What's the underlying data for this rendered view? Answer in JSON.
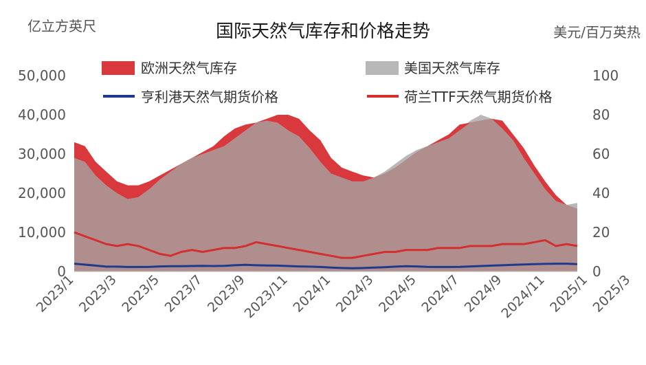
{
  "chart_data": {
    "type": "area",
    "title": "国际天然气库存和价格走势",
    "left_unit": "亿立方英尺",
    "right_unit": "美元/百万英热",
    "left_axis": {
      "min": 0,
      "max": 50000,
      "ticks": [
        "50,000",
        "40,000",
        "30,000",
        "20,000",
        "10,000",
        "0"
      ]
    },
    "right_axis": {
      "min": 0,
      "max": 100,
      "ticks": [
        "100",
        "80",
        "60",
        "40",
        "20",
        "0"
      ]
    },
    "x_tick_labels": [
      "2023/1",
      "2023/3",
      "2023/5",
      "2023/7",
      "2023/9",
      "2023/11",
      "2024/1",
      "2024/3",
      "2024/5",
      "2024/7",
      "2024/9",
      "2024/11",
      "2025/1",
      "2025/3"
    ],
    "x_start": "2023/1",
    "x_step": "0.5 month",
    "colors": {
      "eu": "#d9393c",
      "us": "#b8b8b8",
      "overlap": "#b08e8e",
      "henry": "#1f3a8a",
      "ttf": "#d32f2f",
      "axis": "#bfbfbf"
    },
    "series": [
      {
        "name": "欧洲天然气库存",
        "axis": "left",
        "kind": "area",
        "values": [
          33000,
          32000,
          28000,
          25500,
          23000,
          22000,
          22000,
          23000,
          24500,
          26000,
          27500,
          29000,
          30500,
          32000,
          34500,
          36500,
          37500,
          38000,
          39000,
          40000,
          40000,
          39000,
          36000,
          33500,
          29000,
          26500,
          25500,
          24500,
          24000,
          25000,
          26500,
          28500,
          30500,
          32000,
          33500,
          35000,
          37500,
          38000,
          38500,
          39000,
          38500,
          35000,
          31500,
          27000,
          23000,
          19500,
          17000,
          16000
        ]
      },
      {
        "name": "美国天然气库存",
        "axis": "left",
        "kind": "area",
        "values": [
          29000,
          28000,
          24500,
          22000,
          20000,
          18500,
          19000,
          21000,
          23500,
          25500,
          27500,
          29000,
          30000,
          31000,
          32000,
          34000,
          36000,
          38000,
          38500,
          38000,
          36000,
          34500,
          31500,
          28000,
          25000,
          24000,
          23000,
          23000,
          24000,
          25500,
          27500,
          29500,
          31000,
          32000,
          33000,
          34000,
          36000,
          38500,
          40000,
          39000,
          36500,
          33500,
          29000,
          25000,
          21000,
          18000,
          17000,
          17500
        ]
      },
      {
        "name": "亨利港天然气期货价格",
        "axis": "right",
        "kind": "line",
        "values": [
          4.0,
          3.5,
          3.0,
          2.5,
          2.5,
          2.3,
          2.3,
          2.4,
          2.6,
          2.7,
          2.7,
          2.8,
          2.9,
          2.8,
          2.9,
          3.2,
          3.4,
          3.2,
          3.1,
          3.0,
          2.8,
          2.6,
          2.5,
          2.3,
          2.0,
          1.8,
          1.7,
          1.8,
          2.0,
          2.2,
          2.5,
          2.7,
          2.6,
          2.4,
          2.3,
          2.3,
          2.4,
          2.6,
          2.8,
          3.0,
          3.2,
          3.4,
          3.6,
          3.8,
          3.9,
          4.0,
          4.0,
          3.8
        ]
      },
      {
        "name": "荷兰TTF天然气期货价格",
        "axis": "right",
        "kind": "line",
        "values": [
          20,
          18,
          16,
          14,
          13,
          14,
          13,
          11,
          9,
          8,
          10,
          11,
          10,
          11,
          12,
          12,
          13,
          15,
          14,
          13,
          12,
          11,
          10,
          9,
          8,
          7,
          7,
          8,
          9,
          10,
          10,
          11,
          11,
          11,
          12,
          12,
          12,
          13,
          13,
          13,
          14,
          14,
          14,
          15,
          16,
          13,
          14,
          13
        ]
      }
    ]
  }
}
